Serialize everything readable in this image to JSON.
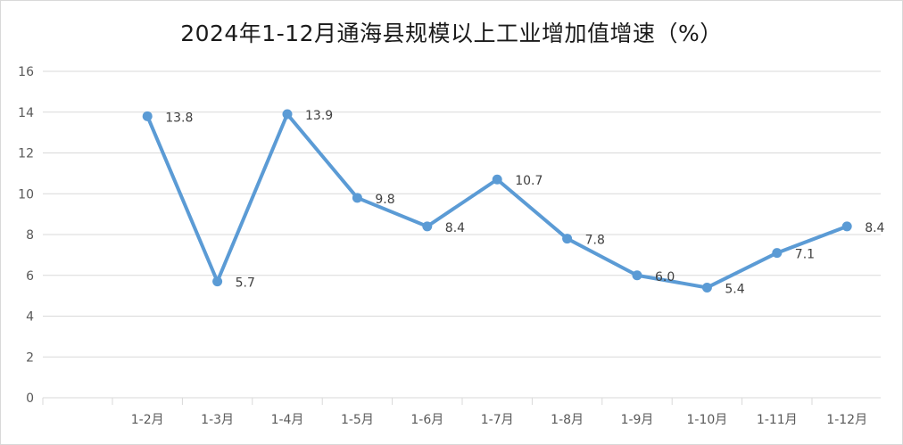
{
  "chart_data": {
    "type": "line",
    "title": "2024年1-12月通海县规模以上工业增加值增速（%）",
    "categories": [
      "1-2月",
      "1-3月",
      "1-4月",
      "1-5月",
      "1-6月",
      "1-7月",
      "1-8月",
      "1-9月",
      "1-10月",
      "1-11月",
      "1-12月"
    ],
    "series": [
      {
        "values": [
          13.8,
          5.7,
          13.9,
          9.8,
          8.4,
          10.7,
          7.8,
          6.0,
          5.4,
          7.1,
          8.4
        ],
        "labels": [
          "13.8",
          "5.7",
          "13.9",
          "9.8",
          "8.4",
          "10.7",
          "7.8",
          "6.0",
          "5.4",
          "7.1",
          "8.4"
        ],
        "color": "#5b9bd5"
      }
    ],
    "y_ticks": [
      "0",
      "2",
      "4",
      "6",
      "8",
      "10",
      "12",
      "14",
      "16"
    ],
    "ylim": [
      0,
      16
    ],
    "grid": true,
    "legend": "none",
    "gridline_color": "#d9d9d9",
    "label_color": "#404040"
  }
}
